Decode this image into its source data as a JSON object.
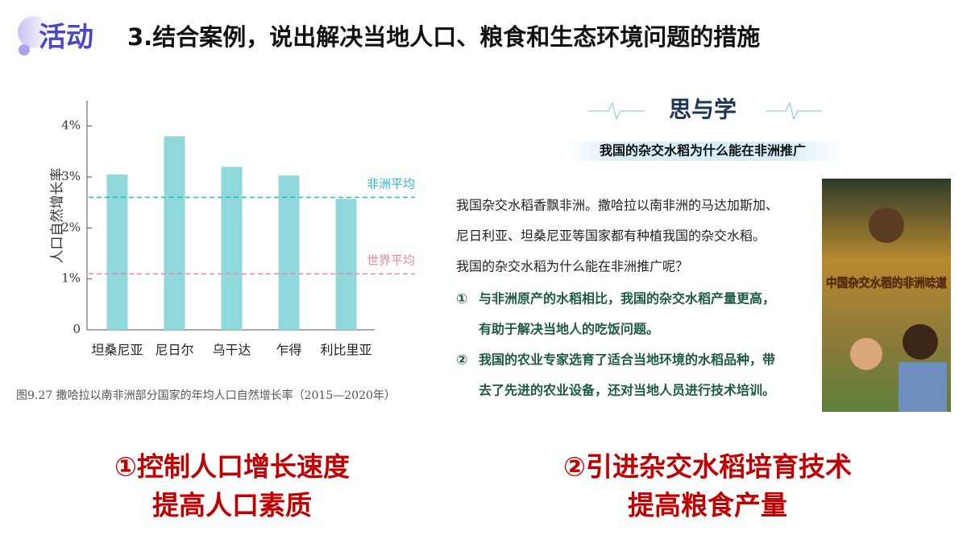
{
  "header": {
    "badge": "活动",
    "title": "3.结合案例，说出解决当地人口、粮食和生态环境问题的措施"
  },
  "chart_data": {
    "type": "bar",
    "y_label": "人口自然增长率",
    "caption": "图9.27   撒哈拉以南非洲部分国家的年均人口自然增长率（2015—2020年）",
    "categories": [
      "坦桑尼亚",
      "尼日尔",
      "乌干达",
      "乍得",
      "利比里亚"
    ],
    "values": [
      3.05,
      3.8,
      3.2,
      3.03,
      2.57
    ],
    "color": "#8fd9dc",
    "ylim": [
      0,
      4.5
    ],
    "yticks": [
      0,
      {
        "value": 1,
        "label": "1%"
      },
      {
        "value": 2,
        "label": "2%"
      },
      {
        "value": 3,
        "label": "3%"
      },
      {
        "value": 4,
        "label": "4%"
      }
    ],
    "reference_lines": [
      {
        "name": "非洲平均",
        "value": 2.6,
        "color": "#2bb5c9"
      },
      {
        "name": "世界平均",
        "value": 1.1,
        "color": "#e98a95"
      }
    ]
  },
  "panel": {
    "heading": "思与学",
    "question": "我国的杂交水稻为什么能在非洲推广",
    "paragraph": [
      "我国杂交水稻香飘非洲。撒哈拉以南非洲的马达加斯加、",
      "尼日利亚、坦桑尼亚等国家都有种植我国的杂交水稻。",
      "我国的杂交水稻为什么能在非洲推广呢？"
    ],
    "points": [
      {
        "number": "①",
        "lines": [
          "与非洲原产的水稻相比，我国的杂交水稻产量更高，",
          "有助于解决当地人的吃饭问题。"
        ]
      },
      {
        "number": "②",
        "lines": [
          "我国的农业专家选育了适合当地环境的水稻品种，带",
          "去了先进的农业设备，还对当地人员进行技术培训。"
        ]
      }
    ]
  },
  "poster": {
    "title": "中国杂交水稻的非洲味道"
  },
  "conclusions": [
    {
      "lines": [
        "①控制人口增长速度",
        "提高人口素质"
      ]
    },
    {
      "lines": [
        "②引进杂交水稻培育技术",
        "提高粮食产量"
      ]
    }
  ]
}
